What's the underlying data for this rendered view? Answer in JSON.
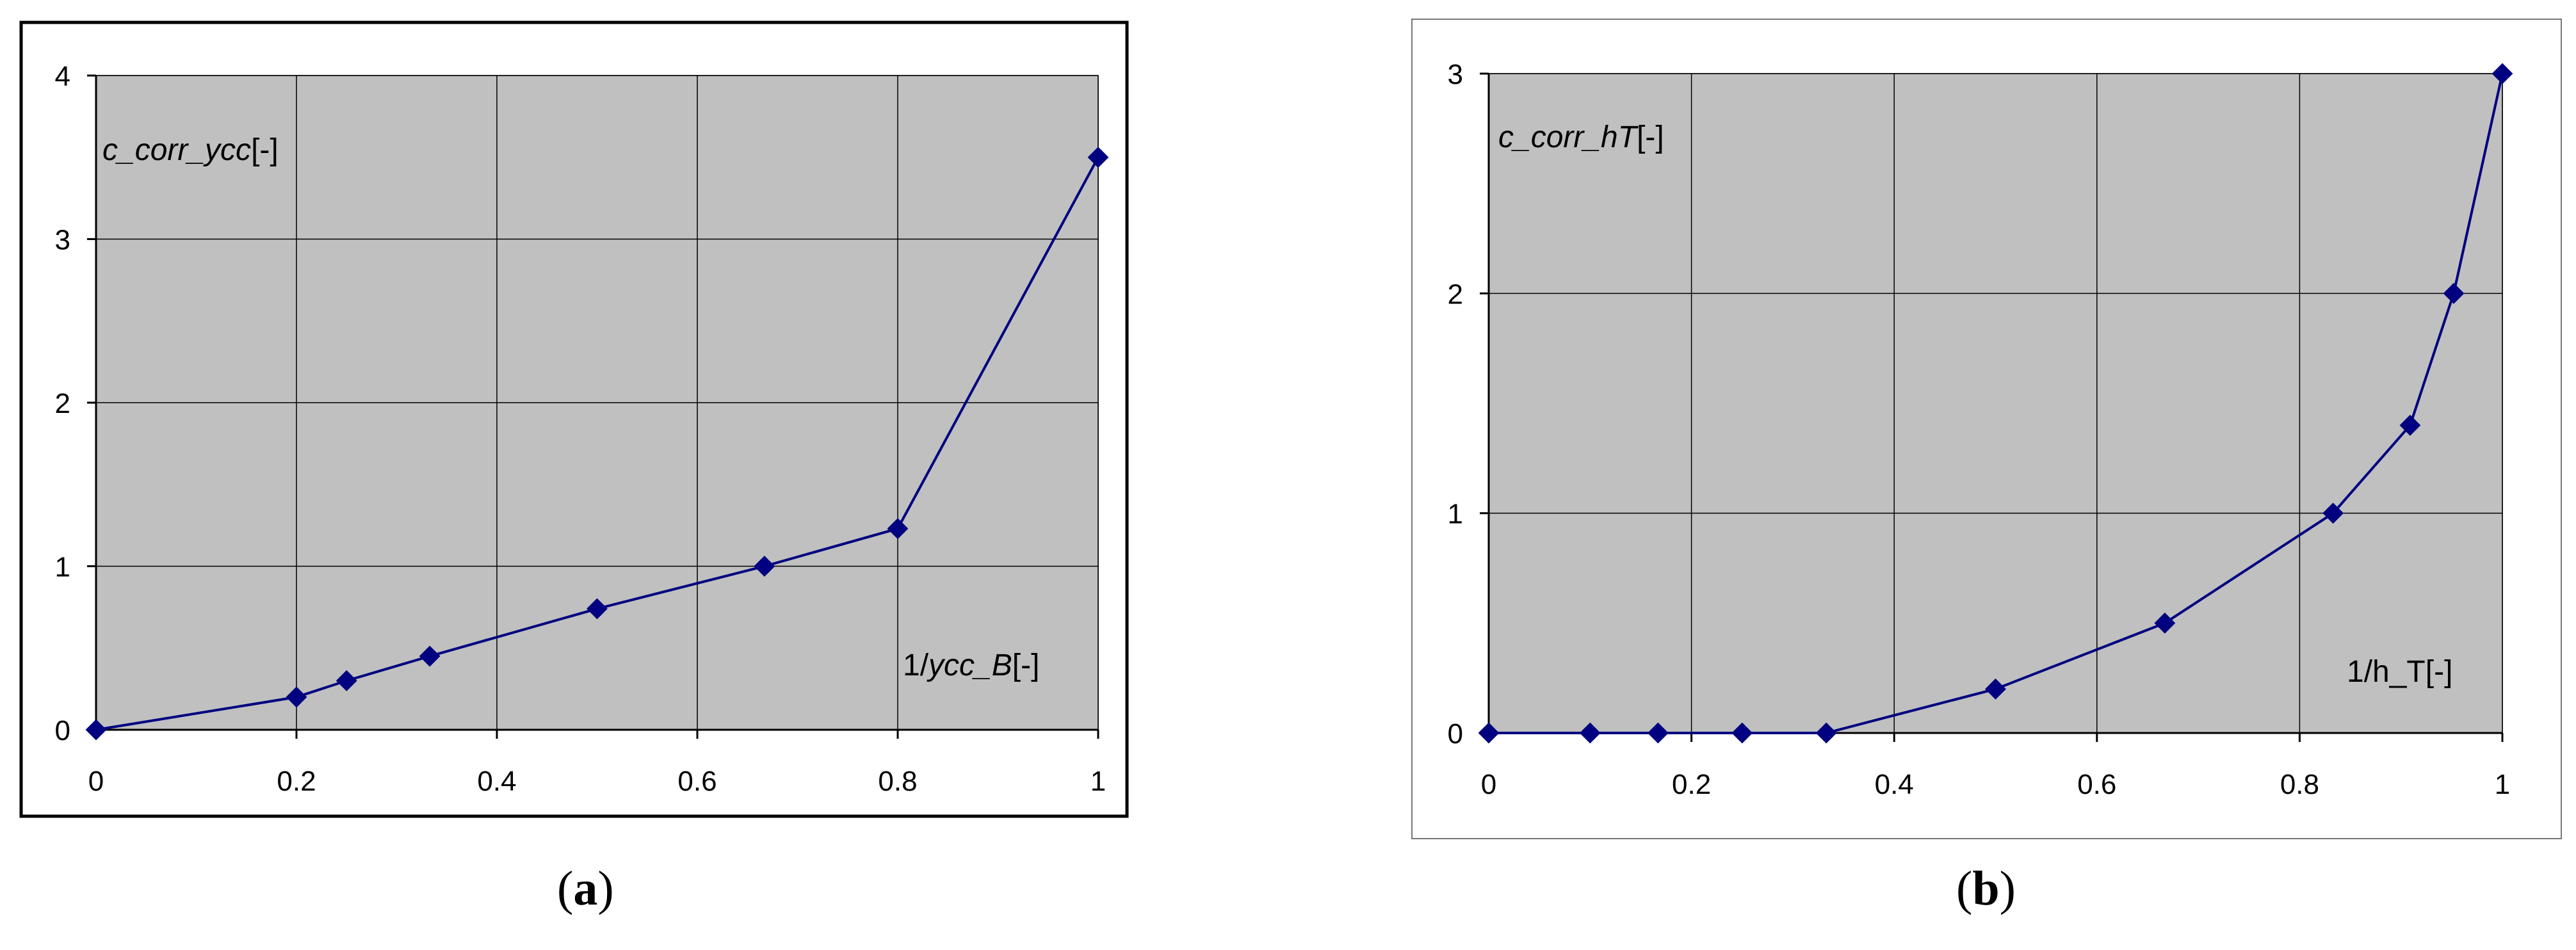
{
  "chart_data": [
    {
      "type": "line",
      "panel_label": "a",
      "ylabel": {
        "base": "c_corr_ycc",
        "unit": "[-]"
      },
      "xlabel": {
        "prefix": "1/",
        "base": "ycc_B",
        "unit": "[-]"
      },
      "xlim": [
        0,
        1
      ],
      "ylim": [
        0,
        4
      ],
      "x_ticks": [
        0,
        0.2,
        0.4,
        0.6,
        0.8,
        1
      ],
      "y_ticks": [
        0,
        1,
        2,
        3,
        4
      ],
      "grid": true,
      "colors": {
        "series": "#000080",
        "plot_bg": "#c0c0c0",
        "grid": "#000000"
      },
      "series": [
        {
          "x": [
            0,
            0.2,
            0.25,
            0.333,
            0.5,
            0.667,
            0.8,
            1
          ],
          "y": [
            0,
            0.2,
            0.3,
            0.45,
            0.74,
            1.0,
            1.23,
            3.5
          ]
        }
      ]
    },
    {
      "type": "line",
      "panel_label": "b",
      "ylabel": {
        "base": "c_corr_hT",
        "unit": "[-]"
      },
      "xlabel": {
        "prefix": "",
        "base": "1/h_T",
        "unit": "[-]"
      },
      "xlim": [
        0,
        1
      ],
      "ylim": [
        0,
        3
      ],
      "x_ticks": [
        0,
        0.2,
        0.4,
        0.6,
        0.8,
        1
      ],
      "y_ticks": [
        0,
        1,
        2,
        3
      ],
      "grid": true,
      "colors": {
        "series": "#000080",
        "plot_bg": "#c0c0c0",
        "grid": "#000000"
      },
      "series": [
        {
          "x": [
            0,
            0.1,
            0.167,
            0.25,
            0.333,
            0.5,
            0.667,
            0.833,
            0.909,
            0.952,
            1
          ],
          "y": [
            0,
            0,
            0,
            0,
            0,
            0.2,
            0.5,
            1.0,
            1.4,
            2.0,
            3.0
          ]
        }
      ]
    }
  ]
}
